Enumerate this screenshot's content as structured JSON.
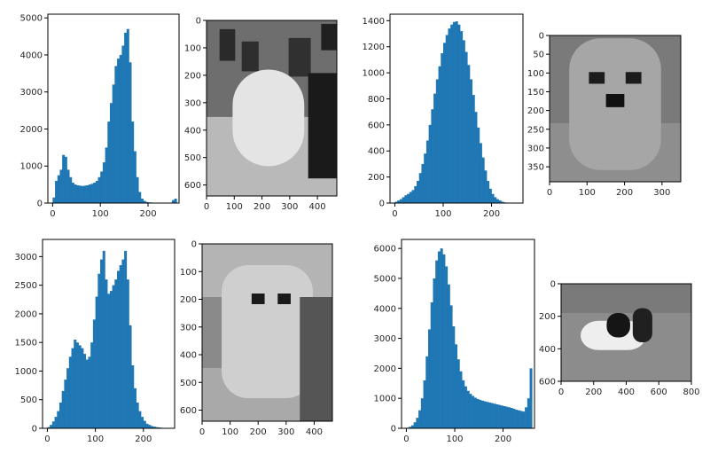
{
  "colors": {
    "bar": "#1f77b4",
    "axis": "#000000",
    "text": "#262626"
  },
  "chart_data": [
    {
      "type": "bar",
      "kind": "histogram",
      "xlim": [
        -10,
        265
      ],
      "ylim": [
        0,
        5100
      ],
      "xticks": [
        0,
        100,
        200
      ],
      "yticks": [
        0,
        1000,
        2000,
        3000,
        4000,
        5000
      ],
      "bins": [
        0,
        5,
        10,
        15,
        20,
        25,
        30,
        35,
        40,
        45,
        50,
        55,
        60,
        65,
        70,
        75,
        80,
        85,
        90,
        95,
        100,
        105,
        110,
        115,
        120,
        125,
        130,
        135,
        140,
        145,
        150,
        155,
        160,
        165,
        170,
        175,
        180,
        185,
        190,
        195,
        200,
        205,
        210,
        215,
        220,
        225,
        230,
        235,
        240,
        245,
        250,
        255
      ],
      "values": [
        150,
        600,
        750,
        900,
        1300,
        1250,
        900,
        700,
        550,
        500,
        480,
        470,
        460,
        470,
        480,
        500,
        520,
        550,
        600,
        700,
        850,
        1100,
        1500,
        2200,
        2700,
        3200,
        3700,
        3900,
        4000,
        4250,
        4600,
        4700,
        3800,
        2200,
        1400,
        700,
        300,
        120,
        60,
        30,
        20,
        15,
        10,
        10,
        10,
        10,
        10,
        10,
        10,
        10,
        80,
        120
      ]
    },
    {
      "type": "bar",
      "kind": "histogram",
      "xlim": [
        -10,
        265
      ],
      "ylim": [
        0,
        1450
      ],
      "xticks": [
        0,
        100,
        200
      ],
      "yticks": [
        0,
        200,
        400,
        600,
        800,
        1000,
        1200,
        1400
      ],
      "bins": [
        0,
        5,
        10,
        15,
        20,
        25,
        30,
        35,
        40,
        45,
        50,
        55,
        60,
        65,
        70,
        75,
        80,
        85,
        90,
        95,
        100,
        105,
        110,
        115,
        120,
        125,
        130,
        135,
        140,
        145,
        150,
        155,
        160,
        165,
        170,
        175,
        180,
        185,
        190,
        195,
        200,
        205,
        210,
        215,
        220,
        225,
        230,
        235
      ],
      "values": [
        10,
        20,
        30,
        45,
        60,
        70,
        85,
        100,
        130,
        170,
        230,
        300,
        380,
        480,
        600,
        720,
        840,
        950,
        1050,
        1150,
        1230,
        1290,
        1340,
        1370,
        1390,
        1395,
        1370,
        1320,
        1250,
        1160,
        1060,
        950,
        830,
        700,
        580,
        460,
        350,
        250,
        170,
        110,
        70,
        45,
        30,
        20,
        10,
        5,
        3,
        1
      ]
    },
    {
      "type": "bar",
      "kind": "histogram",
      "xlim": [
        -10,
        265
      ],
      "ylim": [
        0,
        3300
      ],
      "xticks": [
        0,
        100,
        200
      ],
      "yticks": [
        0,
        500,
        1000,
        1500,
        2000,
        2500,
        3000
      ],
      "bins": [
        0,
        5,
        10,
        15,
        20,
        25,
        30,
        35,
        40,
        45,
        50,
        55,
        60,
        65,
        70,
        75,
        80,
        85,
        90,
        95,
        100,
        105,
        110,
        115,
        120,
        125,
        130,
        135,
        140,
        145,
        150,
        155,
        160,
        165,
        170,
        175,
        180,
        185,
        190,
        195,
        200,
        205,
        210,
        215,
        220,
        225,
        230,
        235,
        240,
        245
      ],
      "values": [
        20,
        60,
        120,
        200,
        300,
        450,
        650,
        850,
        1050,
        1250,
        1400,
        1550,
        1500,
        1450,
        1400,
        1300,
        1200,
        1250,
        1500,
        1900,
        2300,
        2700,
        2950,
        3100,
        2600,
        2350,
        2400,
        2500,
        2600,
        2750,
        2850,
        2950,
        3100,
        2600,
        1800,
        1100,
        700,
        450,
        300,
        200,
        130,
        80,
        60,
        40,
        30,
        20,
        15,
        10,
        5,
        3
      ]
    },
    {
      "type": "bar",
      "kind": "histogram",
      "xlim": [
        -10,
        265
      ],
      "ylim": [
        0,
        6300
      ],
      "xticks": [
        0,
        100,
        200
      ],
      "yticks": [
        0,
        1000,
        2000,
        3000,
        4000,
        5000,
        6000
      ],
      "bins": [
        0,
        5,
        10,
        15,
        20,
        25,
        30,
        35,
        40,
        45,
        50,
        55,
        60,
        65,
        70,
        75,
        80,
        85,
        90,
        95,
        100,
        105,
        110,
        115,
        120,
        125,
        130,
        135,
        140,
        145,
        150,
        155,
        160,
        165,
        170,
        175,
        180,
        185,
        190,
        195,
        200,
        205,
        210,
        215,
        220,
        225,
        230,
        235,
        240,
        245,
        250,
        255
      ],
      "values": [
        20,
        50,
        100,
        200,
        350,
        600,
        1000,
        1600,
        2400,
        3300,
        4200,
        5000,
        5600,
        5900,
        6000,
        5800,
        5400,
        4800,
        4100,
        3400,
        2800,
        2300,
        1900,
        1600,
        1400,
        1250,
        1150,
        1080,
        1020,
        980,
        950,
        920,
        900,
        880,
        860,
        840,
        820,
        800,
        780,
        760,
        740,
        720,
        700,
        680,
        650,
        620,
        600,
        580,
        560,
        700,
        1000,
        2000
      ]
    },
    {
      "type": "image",
      "xlim": [
        0,
        470
      ],
      "ylim": [
        640,
        0
      ],
      "xticks": [
        0,
        100,
        200,
        300,
        400
      ],
      "yticks": [
        0,
        100,
        200,
        300,
        400,
        500,
        600
      ]
    },
    {
      "type": "image",
      "xlim": [
        0,
        350
      ],
      "ylim": [
        390,
        0
      ],
      "xticks": [
        0,
        100,
        200,
        300
      ],
      "yticks": [
        0,
        50,
        100,
        150,
        200,
        250,
        300,
        350
      ]
    },
    {
      "type": "image",
      "xlim": [
        0,
        465
      ],
      "ylim": [
        640,
        0
      ],
      "xticks": [
        0,
        100,
        200,
        300,
        400
      ],
      "yticks": [
        0,
        100,
        200,
        300,
        400,
        500,
        600
      ]
    },
    {
      "type": "image",
      "xlim": [
        0,
        800
      ],
      "ylim": [
        600,
        0
      ],
      "xticks": [
        0,
        200,
        400,
        600,
        800
      ],
      "yticks": [
        0,
        200,
        400,
        600
      ]
    }
  ]
}
